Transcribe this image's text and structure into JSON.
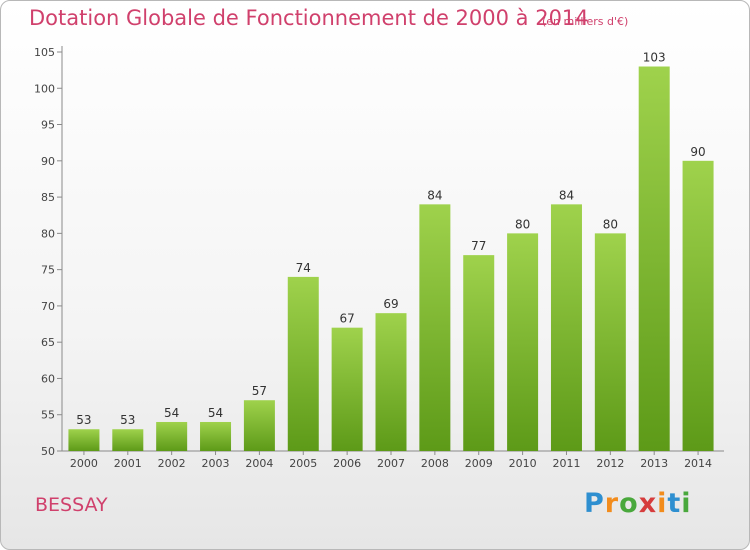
{
  "header": {
    "title": "Dotation Globale de Fonctionnement de 2000 à 2014",
    "unit_note": "(en milliers d'€)"
  },
  "footer": {
    "location": "BESSAY",
    "logo_text": "Proxiti"
  },
  "colors": {
    "title": "#d0406c",
    "bar_light": "#9fd24c",
    "bar_dark": "#5d9a18"
  },
  "chart_data": {
    "type": "bar",
    "title": "Dotation Globale de Fonctionnement de 2000 à 2014",
    "subtitle": "(en milliers d'€)",
    "categories": [
      "2000",
      "2001",
      "2002",
      "2003",
      "2004",
      "2005",
      "2006",
      "2007",
      "2008",
      "2009",
      "2010",
      "2011",
      "2012",
      "2013",
      "2014"
    ],
    "values": [
      53,
      53,
      54,
      54,
      57,
      74,
      67,
      69,
      84,
      77,
      80,
      84,
      80,
      103,
      90
    ],
    "ylim": [
      50,
      105
    ],
    "yticks": [
      50,
      55,
      60,
      65,
      70,
      75,
      80,
      85,
      90,
      95,
      100,
      105
    ],
    "grid": false,
    "legend": "none"
  }
}
